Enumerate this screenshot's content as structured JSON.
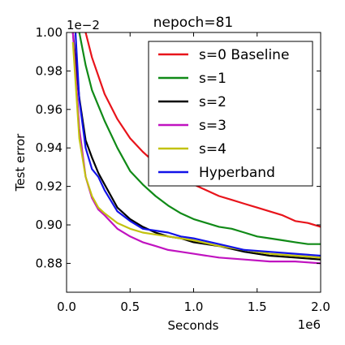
{
  "chart_data": {
    "type": "line",
    "title": "nepoch=81",
    "xlabel": "Seconds",
    "ylabel": "Test error",
    "x_offset_label": "1e6",
    "y_offset_label": "1e−2",
    "xlim": [
      0.0,
      2.0
    ],
    "ylim": [
      0.865,
      1.0
    ],
    "xticks": [
      0.0,
      0.5,
      1.0,
      1.5,
      2.0
    ],
    "xtick_labels": [
      "0.0",
      "0.5",
      "1.0",
      "1.5",
      "2.0"
    ],
    "yticks": [
      0.88,
      0.9,
      0.92,
      0.94,
      0.96,
      0.98,
      1.0
    ],
    "ytick_labels": [
      "0.88",
      "0.90",
      "0.92",
      "0.94",
      "0.96",
      "0.98",
      "1.00"
    ],
    "grid": false,
    "legend_position": "top-right",
    "series": [
      {
        "name": "s=0 Baseline",
        "color": "#e8141b",
        "x": [
          0.15,
          0.2,
          0.3,
          0.4,
          0.5,
          0.6,
          0.7,
          0.8,
          0.9,
          1.0,
          1.1,
          1.2,
          1.3,
          1.4,
          1.5,
          1.6,
          1.7,
          1.8,
          1.9,
          2.0
        ],
        "y": [
          1.0,
          0.987,
          0.968,
          0.955,
          0.945,
          0.938,
          0.932,
          0.927,
          0.924,
          0.921,
          0.918,
          0.915,
          0.913,
          0.911,
          0.909,
          0.907,
          0.905,
          0.902,
          0.901,
          0.899
        ]
      },
      {
        "name": "s=1",
        "color": "#108a17",
        "x": [
          0.1,
          0.15,
          0.2,
          0.3,
          0.4,
          0.5,
          0.6,
          0.7,
          0.8,
          0.9,
          1.0,
          1.1,
          1.2,
          1.3,
          1.4,
          1.5,
          1.6,
          1.7,
          1.8,
          1.9,
          2.0
        ],
        "y": [
          1.0,
          0.983,
          0.97,
          0.954,
          0.94,
          0.928,
          0.921,
          0.915,
          0.91,
          0.906,
          0.903,
          0.901,
          0.899,
          0.898,
          0.896,
          0.894,
          0.893,
          0.892,
          0.891,
          0.89,
          0.89
        ]
      },
      {
        "name": "s=2",
        "color": "#000000",
        "x": [
          0.05,
          0.1,
          0.15,
          0.2,
          0.25,
          0.3,
          0.4,
          0.5,
          0.6,
          0.7,
          0.8,
          0.9,
          1.0,
          1.2,
          1.4,
          1.6,
          1.8,
          2.0
        ],
        "y": [
          1.0,
          0.966,
          0.944,
          0.935,
          0.927,
          0.921,
          0.909,
          0.903,
          0.899,
          0.896,
          0.894,
          0.893,
          0.891,
          0.889,
          0.886,
          0.884,
          0.883,
          0.882
        ]
      },
      {
        "name": "s=3",
        "color": "#c013c0",
        "x": [
          0.05,
          0.1,
          0.15,
          0.2,
          0.25,
          0.3,
          0.4,
          0.5,
          0.6,
          0.7,
          0.8,
          0.9,
          1.0,
          1.2,
          1.4,
          1.6,
          1.8,
          2.0
        ],
        "y": [
          1.0,
          0.95,
          0.925,
          0.914,
          0.908,
          0.905,
          0.898,
          0.894,
          0.891,
          0.889,
          0.887,
          0.886,
          0.885,
          0.883,
          0.882,
          0.881,
          0.881,
          0.88
        ]
      },
      {
        "name": "s=4",
        "color": "#c2c20f",
        "x": [
          0.05,
          0.1,
          0.15,
          0.2,
          0.25,
          0.3,
          0.4,
          0.5,
          0.6,
          0.7,
          0.8,
          0.9,
          1.0,
          1.2,
          1.4,
          1.6,
          1.8,
          2.0
        ],
        "y": [
          0.995,
          0.945,
          0.925,
          0.915,
          0.909,
          0.906,
          0.901,
          0.898,
          0.896,
          0.895,
          0.894,
          0.893,
          0.892,
          0.889,
          0.887,
          0.885,
          0.884,
          0.883
        ]
      },
      {
        "name": "Hyperband",
        "color": "#1212e8",
        "x": [
          0.07,
          0.1,
          0.15,
          0.2,
          0.25,
          0.3,
          0.4,
          0.5,
          0.6,
          0.7,
          0.8,
          0.9,
          1.0,
          1.2,
          1.4,
          1.6,
          1.8,
          2.0
        ],
        "y": [
          1.0,
          0.965,
          0.94,
          0.929,
          0.925,
          0.918,
          0.907,
          0.902,
          0.898,
          0.897,
          0.896,
          0.894,
          0.893,
          0.89,
          0.887,
          0.886,
          0.885,
          0.884
        ]
      }
    ]
  }
}
